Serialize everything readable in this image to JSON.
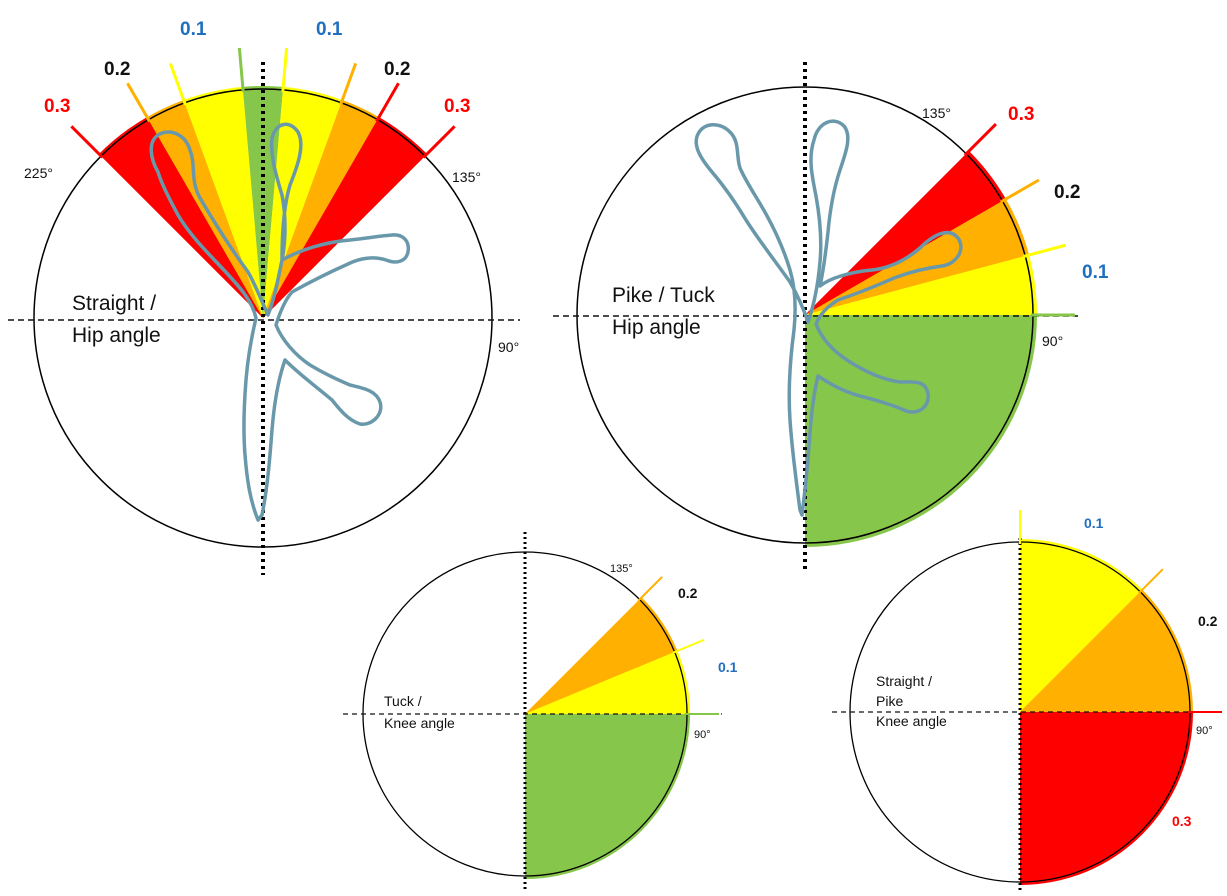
{
  "colors": {
    "red": "#ff0000",
    "orange": "#ffb000",
    "yellow": "#ffff00",
    "green": "#86c64a",
    "blue_label": "#1f6fbf",
    "figure_outline": "#6a98ab"
  },
  "diagrams": [
    {
      "id": "straight-hip",
      "title_lines": [
        "Straight /",
        "Hip angle"
      ],
      "degree_labels": [
        "225°",
        "135°",
        "90°"
      ],
      "deduction_labels": [
        "0.3",
        "0.2",
        "0.1",
        "0.1",
        "0.2",
        "0.3"
      ],
      "zones": [
        {
          "from_deg": -45,
          "to_deg": -30,
          "deduction": "0.3",
          "color": "red"
        },
        {
          "from_deg": -30,
          "to_deg": -20,
          "deduction": "0.2",
          "color": "orange"
        },
        {
          "from_deg": -20,
          "to_deg": -5,
          "deduction": "0.1",
          "color": "yellow"
        },
        {
          "from_deg": -5,
          "to_deg": 5,
          "deduction": "0",
          "color": "green"
        },
        {
          "from_deg": 5,
          "to_deg": 20,
          "deduction": "0.1",
          "color": "yellow"
        },
        {
          "from_deg": 20,
          "to_deg": 30,
          "deduction": "0.2",
          "color": "orange"
        },
        {
          "from_deg": 30,
          "to_deg": 45,
          "deduction": "0.3",
          "color": "red"
        }
      ]
    },
    {
      "id": "pike-tuck-hip",
      "title_lines": [
        "Pike / Tuck",
        "Hip angle"
      ],
      "degree_labels": [
        "135°",
        "90°"
      ],
      "deduction_labels": [
        "0.3",
        "0.2",
        "0.1"
      ],
      "zones": [
        {
          "from_deg": 45,
          "to_deg": 60,
          "deduction": "0.3",
          "color": "red"
        },
        {
          "from_deg": 60,
          "to_deg": 75,
          "deduction": "0.2",
          "color": "orange"
        },
        {
          "from_deg": 75,
          "to_deg": 90,
          "deduction": "0.1",
          "color": "yellow"
        },
        {
          "from_deg": 90,
          "to_deg": 180,
          "deduction": "0",
          "color": "green"
        }
      ]
    },
    {
      "id": "tuck-knee",
      "title_lines": [
        "Tuck /",
        "Knee angle"
      ],
      "degree_labels": [
        "135°",
        "90°"
      ],
      "deduction_labels": [
        "0.2",
        "0.1"
      ],
      "zones": [
        {
          "from_deg": 45,
          "to_deg": 67.5,
          "deduction": "0.2",
          "color": "orange"
        },
        {
          "from_deg": 67.5,
          "to_deg": 90,
          "deduction": "0.1",
          "color": "yellow"
        },
        {
          "from_deg": 90,
          "to_deg": 180,
          "deduction": "0",
          "color": "green"
        }
      ]
    },
    {
      "id": "straight-pike-knee",
      "title_lines": [
        "Straight /",
        "Pike",
        "Knee angle"
      ],
      "degree_labels": [
        "90°"
      ],
      "deduction_labels": [
        "0.1",
        "0.2",
        "0.3"
      ],
      "zones": [
        {
          "from_deg": 0,
          "to_deg": 45,
          "deduction": "0.1",
          "color": "yellow"
        },
        {
          "from_deg": 45,
          "to_deg": 90,
          "deduction": "0.2",
          "color": "orange"
        },
        {
          "from_deg": 90,
          "to_deg": 180,
          "deduction": "0.3",
          "color": "red"
        }
      ]
    }
  ]
}
